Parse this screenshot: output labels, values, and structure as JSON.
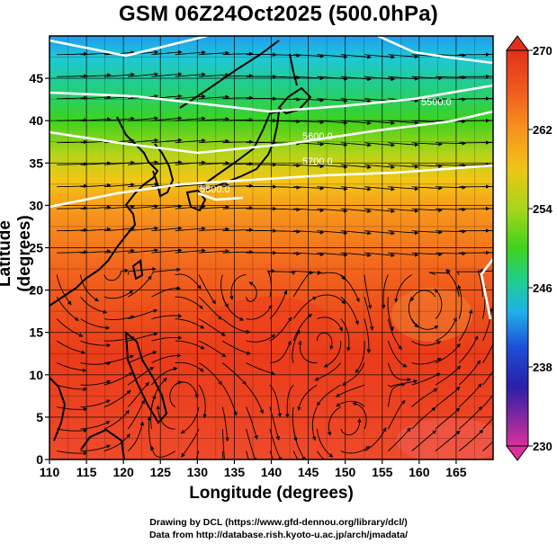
{
  "title": "GSM 06Z24Oct2025 (500.0hPa)",
  "axes": {
    "xlabel": "Longitude (degrees)",
    "ylabel": "Latitude  (degrees)",
    "x_ticks": [
      110,
      115,
      120,
      125,
      130,
      135,
      140,
      145,
      150,
      155,
      160,
      165
    ],
    "y_ticks": [
      0,
      5,
      10,
      15,
      20,
      25,
      30,
      35,
      40,
      45
    ],
    "x_range": [
      110,
      170
    ],
    "y_range": [
      0,
      50
    ]
  },
  "colorbar": {
    "ticks": [
      270,
      262,
      254,
      246,
      238,
      230
    ],
    "range": [
      230,
      270
    ],
    "stops": [
      "#d9309a",
      "#2a1fa8",
      "#1d4fd8",
      "#1fb1ea",
      "#1fcf8a",
      "#3fd21d",
      "#a8d61a",
      "#f0c416",
      "#f7931e",
      "#f05a1e",
      "#e0321a"
    ]
  },
  "contours": {
    "labels": [
      "5700.0",
      "5800.0",
      "5600.0",
      "5500.0"
    ]
  },
  "credits": [
    "Drawing by DCL (https://www.gfd-dennou.org/library/dcl/)",
    "Data from http://database.rish.kyoto-u.ac.jp/arch/jmadata/"
  ]
}
